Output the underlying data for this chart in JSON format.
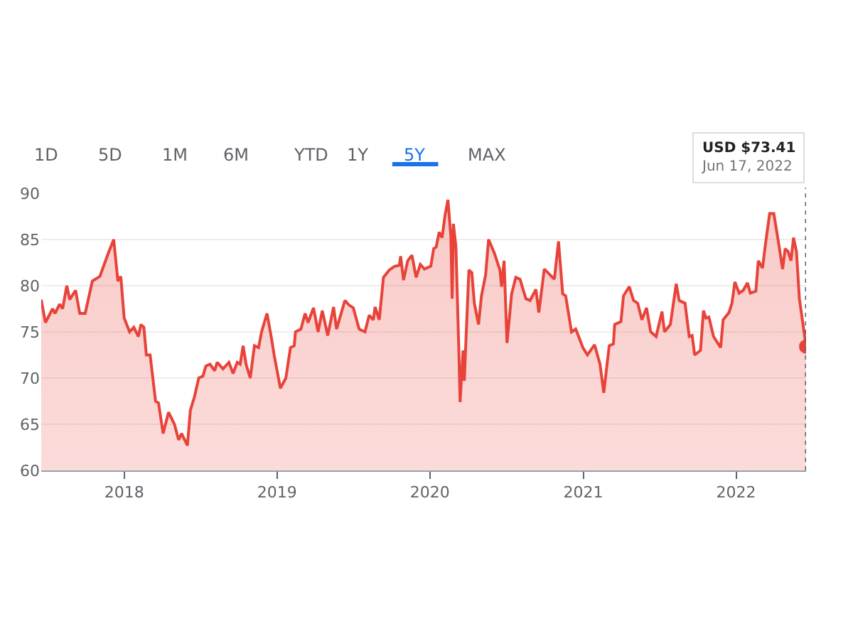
{
  "chart_data": {
    "type": "area",
    "color": "#e8433a",
    "x": [
      "2017-06-17",
      "2017-06-27",
      "2017-07-14",
      "2017-07-20",
      "2017-07-31",
      "2017-08-07",
      "2017-08-17",
      "2017-08-24",
      "2017-09-07",
      "2017-09-17",
      "2017-09-30",
      "2017-10-17",
      "2017-11-04",
      "2017-11-24",
      "2017-12-07",
      "2017-12-17",
      "2017-12-24",
      "2018-01-01",
      "2018-01-14",
      "2018-01-24",
      "2018-02-04",
      "2018-02-10",
      "2018-02-17",
      "2018-02-23",
      "2018-03-04",
      "2018-03-17",
      "2018-03-24",
      "2018-04-04",
      "2018-04-17",
      "2018-05-01",
      "2018-05-11",
      "2018-05-18",
      "2018-06-01",
      "2018-06-08",
      "2018-06-18",
      "2018-06-28",
      "2018-07-08",
      "2018-07-15",
      "2018-07-25",
      "2018-08-05",
      "2018-08-11",
      "2018-08-25",
      "2018-09-08",
      "2018-09-18",
      "2018-09-28",
      "2018-10-05",
      "2018-10-12",
      "2018-10-19",
      "2018-10-29",
      "2018-11-08",
      "2018-11-18",
      "2018-11-25",
      "2018-12-08",
      "2018-12-18",
      "2018-12-25",
      "2019-01-09",
      "2019-01-22",
      "2019-02-02",
      "2019-02-11",
      "2019-02-14",
      "2019-02-27",
      "2019-03-09",
      "2019-03-16",
      "2019-03-29",
      "2019-04-09",
      "2019-04-19",
      "2019-05-02",
      "2019-05-16",
      "2019-05-23",
      "2019-06-12",
      "2019-06-22",
      "2019-07-02",
      "2019-07-16",
      "2019-07-30",
      "2019-08-09",
      "2019-08-19",
      "2019-08-23",
      "2019-09-02",
      "2019-09-12",
      "2019-09-26",
      "2019-10-09",
      "2019-10-20",
      "2019-10-23",
      "2019-10-30",
      "2019-11-09",
      "2019-11-19",
      "2019-11-29",
      "2019-12-09",
      "2019-12-19",
      "2020-01-03",
      "2020-01-10",
      "2020-01-16",
      "2020-01-23",
      "2020-01-30",
      "2020-02-06",
      "2020-02-13",
      "2020-02-20",
      "2020-02-23",
      "2020-02-26",
      "2020-03-03",
      "2020-03-10",
      "2020-03-13",
      "2020-03-20",
      "2020-03-23",
      "2020-04-03",
      "2020-04-10",
      "2020-04-16",
      "2020-04-26",
      "2020-05-03",
      "2020-05-13",
      "2020-05-20",
      "2020-06-03",
      "2020-06-16",
      "2020-06-20",
      "2020-06-26",
      "2020-07-03",
      "2020-07-14",
      "2020-07-24",
      "2020-08-03",
      "2020-08-17",
      "2020-08-27",
      "2020-09-10",
      "2020-09-17",
      "2020-09-30",
      "2020-10-24",
      "2020-11-03",
      "2020-11-13",
      "2020-11-20",
      "2020-12-04",
      "2020-12-14",
      "2020-12-21",
      "2020-12-31",
      "2021-01-11",
      "2021-01-28",
      "2021-02-10",
      "2021-02-19",
      "2021-03-04",
      "2021-03-14",
      "2021-03-17",
      "2021-04-01",
      "2021-04-07",
      "2021-04-21",
      "2021-05-01",
      "2021-05-11",
      "2021-05-21",
      "2021-06-01",
      "2021-06-11",
      "2021-06-24",
      "2021-07-08",
      "2021-07-14",
      "2021-07-28",
      "2021-08-11",
      "2021-08-18",
      "2021-09-01",
      "2021-09-11",
      "2021-09-18",
      "2021-09-24",
      "2021-10-08",
      "2021-10-15",
      "2021-10-21",
      "2021-10-28",
      "2021-11-08",
      "2021-11-25",
      "2021-12-01",
      "2021-12-15",
      "2021-12-22",
      "2021-12-29",
      "2022-01-08",
      "2022-01-18",
      "2022-01-28",
      "2022-02-04",
      "2022-02-17",
      "2022-02-23",
      "2022-03-05",
      "2022-03-12",
      "2022-03-22",
      "2022-04-01",
      "2022-04-11",
      "2022-04-22",
      "2022-04-28",
      "2022-05-05",
      "2022-05-12",
      "2022-05-18",
      "2022-05-25",
      "2022-06-01",
      "2022-06-17"
    ],
    "values": [
      78.5,
      76,
      77.5,
      77,
      78,
      77.5,
      80,
      78.5,
      79.5,
      77,
      77,
      80.5,
      81,
      83.5,
      85,
      80.5,
      81,
      76.5,
      75,
      75.5,
      74.5,
      75.8,
      75.5,
      72.5,
      72.5,
      67.5,
      67.3,
      64,
      66.3,
      65,
      63.3,
      64,
      62.7,
      66.5,
      68,
      70,
      70.2,
      71.3,
      71.5,
      70.8,
      71.7,
      71,
      71.7,
      70.5,
      71.7,
      71.5,
      73.5,
      71.5,
      70,
      73.5,
      73.3,
      75,
      77,
      74.5,
      72.5,
      68.9,
      70,
      73.3,
      73.5,
      75,
      75.3,
      77,
      76,
      77.6,
      75,
      77.3,
      74.6,
      77.7,
      75.3,
      78.4,
      77.9,
      77.6,
      75.3,
      75,
      76.8,
      76.3,
      77.7,
      76.3,
      80.9,
      81.7,
      82.1,
      82.2,
      83.2,
      80.6,
      82.7,
      83.3,
      80.9,
      82.3,
      81.8,
      82.1,
      84,
      84.2,
      85.8,
      85.2,
      87.6,
      89.3,
      85.3,
      78.6,
      86.7,
      84.2,
      73,
      67.4,
      73,
      69.7,
      81.7,
      81.4,
      78.1,
      75.8,
      78.9,
      81.2,
      85,
      83.5,
      81.7,
      79.9,
      82.7,
      73.8,
      79.1,
      80.9,
      80.7,
      78.6,
      78.4,
      79.6,
      77.1,
      81.8,
      80.7,
      84.8,
      79.1,
      78.9,
      75,
      75.3,
      74.5,
      73.3,
      72.5,
      73.6,
      71.5,
      68.4,
      73.5,
      73.7,
      75.8,
      76.1,
      78.9,
      79.9,
      78.4,
      78.1,
      76.3,
      77.6,
      75,
      74.5,
      77.2,
      75,
      75.8,
      80.2,
      78.4,
      78.1,
      74.5,
      74.6,
      72.5,
      73,
      77.3,
      76.5,
      76.6,
      74.5,
      73.3,
      76.3,
      77.1,
      78.1,
      80.4,
      79.2,
      79.5,
      80.3,
      79.2,
      79.4,
      82.7,
      81.9,
      84.5,
      87.8,
      87.8,
      85,
      81.8,
      84,
      83.7,
      82.7,
      85.2,
      83.7,
      78.6,
      73.41
    ],
    "xlim": [
      "2017-06-17",
      "2022-06-17"
    ],
    "xticks": [
      "2018",
      "2019",
      "2020",
      "2021",
      "2022"
    ],
    "ylim": [
      60,
      90
    ],
    "yticks": [
      60,
      65,
      70,
      75,
      80,
      85,
      90
    ],
    "grid": "y",
    "ref_lines": [
      {
        "axis": "x",
        "value": "2022-06-17",
        "color": "#5f6368",
        "line_style": "dotted"
      }
    ],
    "annotations": [
      "1D",
      "5D",
      "1M",
      "6M",
      "YTD",
      "1Y",
      "5Y",
      "MAX",
      "USD $73.41\nJun 17, 2022"
    ]
  }
}
